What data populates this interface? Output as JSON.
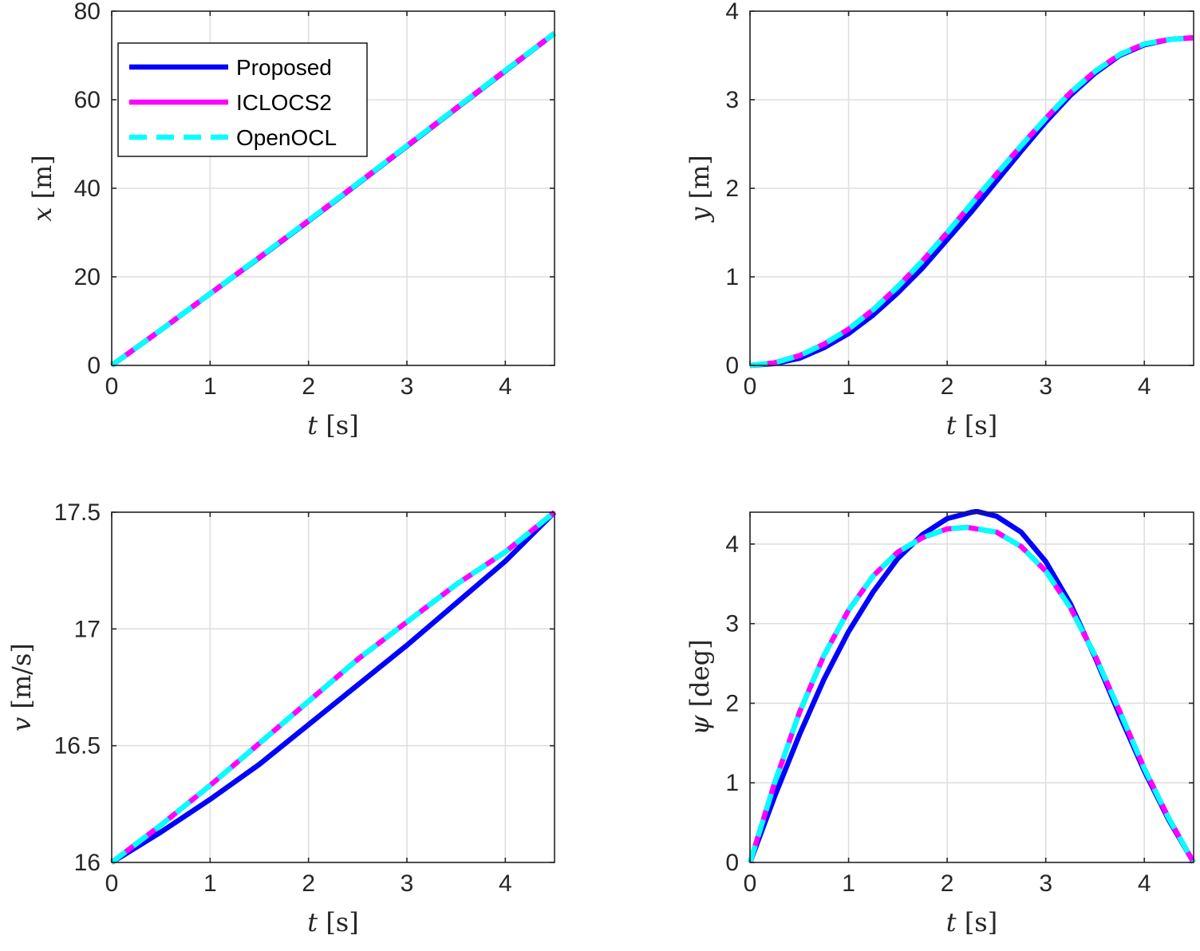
{
  "chart_data": [
    {
      "type": "line",
      "xlabel": "t [s]",
      "xlabel_var": "t",
      "xlabel_unit": "[s]",
      "ylabel": "x [m]",
      "ylabel_var": "x",
      "ylabel_unit": "[m]",
      "xlim": [
        0,
        4.5
      ],
      "ylim": [
        0,
        80
      ],
      "xticks": [
        "0",
        "1",
        "2",
        "3",
        "4"
      ],
      "xtick_values": [
        0,
        1,
        2,
        3,
        4
      ],
      "yticks": [
        "0",
        "20",
        "40",
        "60",
        "80"
      ],
      "ytick_values": [
        0,
        20,
        40,
        60,
        80
      ],
      "grid": true,
      "legend": "top-left",
      "series": [
        {
          "name": "Proposed",
          "color": "#0000ff",
          "style": "solid",
          "x": [
            0,
            0.5,
            1,
            1.5,
            2,
            2.5,
            3,
            3.5,
            4,
            4.5
          ],
          "y": [
            0,
            8.0,
            16.2,
            24.3,
            32.6,
            41.0,
            49.5,
            58.0,
            66.5,
            75.0
          ]
        },
        {
          "name": "ICLOCS2",
          "color": "#ff00ff",
          "style": "solid",
          "x": [
            0,
            0.5,
            1,
            1.5,
            2,
            2.5,
            3,
            3.5,
            4,
            4.5
          ],
          "y": [
            0,
            8.0,
            16.2,
            24.4,
            32.7,
            41.1,
            49.6,
            58.1,
            66.6,
            75.0
          ]
        },
        {
          "name": "OpenOCL",
          "color": "#00ffff",
          "style": "dashed",
          "x": [
            0,
            0.5,
            1,
            1.5,
            2,
            2.5,
            3,
            3.5,
            4,
            4.5
          ],
          "y": [
            0,
            8.0,
            16.2,
            24.4,
            32.7,
            41.1,
            49.6,
            58.1,
            66.6,
            75.0
          ]
        }
      ]
    },
    {
      "type": "line",
      "xlabel": "t [s]",
      "xlabel_var": "t",
      "xlabel_unit": "[s]",
      "ylabel": "y [m]",
      "ylabel_var": "y",
      "ylabel_unit": "[m]",
      "xlim": [
        0,
        4.5
      ],
      "ylim": [
        0,
        4
      ],
      "xticks": [
        "0",
        "1",
        "2",
        "3",
        "4"
      ],
      "xtick_values": [
        0,
        1,
        2,
        3,
        4
      ],
      "yticks": [
        "0",
        "1",
        "2",
        "3",
        "4"
      ],
      "ytick_values": [
        0,
        1,
        2,
        3,
        4
      ],
      "grid": true,
      "series": [
        {
          "name": "Proposed",
          "color": "#0000ff",
          "style": "solid",
          "x": [
            0,
            0.25,
            0.5,
            0.75,
            1,
            1.25,
            1.5,
            1.75,
            2,
            2.25,
            2.5,
            2.75,
            3,
            3.25,
            3.5,
            3.75,
            4,
            4.25,
            4.5
          ],
          "y": [
            0,
            0.02,
            0.08,
            0.2,
            0.36,
            0.57,
            0.82,
            1.1,
            1.42,
            1.74,
            2.08,
            2.42,
            2.75,
            3.05,
            3.3,
            3.5,
            3.62,
            3.68,
            3.7
          ]
        },
        {
          "name": "ICLOCS2",
          "color": "#ff00ff",
          "style": "solid",
          "x": [
            0,
            0.25,
            0.5,
            0.75,
            1,
            1.25,
            1.5,
            1.75,
            2,
            2.25,
            2.5,
            2.75,
            3,
            3.25,
            3.5,
            3.75,
            4,
            4.25,
            4.5
          ],
          "y": [
            0,
            0.03,
            0.11,
            0.24,
            0.41,
            0.63,
            0.89,
            1.18,
            1.5,
            1.83,
            2.16,
            2.48,
            2.79,
            3.08,
            3.32,
            3.51,
            3.63,
            3.68,
            3.7
          ]
        },
        {
          "name": "OpenOCL",
          "color": "#00ffff",
          "style": "dashed",
          "x": [
            0,
            0.25,
            0.5,
            0.75,
            1,
            1.25,
            1.5,
            1.75,
            2,
            2.25,
            2.5,
            2.75,
            3,
            3.25,
            3.5,
            3.75,
            4,
            4.25,
            4.5
          ],
          "y": [
            0,
            0.03,
            0.11,
            0.24,
            0.41,
            0.63,
            0.89,
            1.18,
            1.5,
            1.83,
            2.16,
            2.48,
            2.79,
            3.08,
            3.32,
            3.51,
            3.63,
            3.68,
            3.7
          ]
        }
      ]
    },
    {
      "type": "line",
      "xlabel": "t [s]",
      "xlabel_var": "t",
      "xlabel_unit": "[s]",
      "ylabel": "v [m/s]",
      "ylabel_var": "v",
      "ylabel_unit": "[m/s]",
      "xlim": [
        0,
        4.5
      ],
      "ylim": [
        16,
        17.5
      ],
      "xticks": [
        "0",
        "1",
        "2",
        "3",
        "4"
      ],
      "xtick_values": [
        0,
        1,
        2,
        3,
        4
      ],
      "yticks": [
        "16",
        "16.5",
        "17",
        "17.5"
      ],
      "ytick_values": [
        16,
        16.5,
        17,
        17.5
      ],
      "grid": true,
      "series": [
        {
          "name": "Proposed",
          "color": "#0000ff",
          "style": "solid",
          "x": [
            0,
            0.5,
            1,
            1.5,
            2,
            2.5,
            3,
            3.5,
            4,
            4.5
          ],
          "y": [
            16.0,
            16.13,
            16.27,
            16.42,
            16.59,
            16.76,
            16.93,
            17.11,
            17.29,
            17.5
          ]
        },
        {
          "name": "ICLOCS2",
          "color": "#ff00ff",
          "style": "solid",
          "x": [
            0,
            0.5,
            1,
            1.5,
            2,
            2.5,
            3,
            3.5,
            4,
            4.5
          ],
          "y": [
            16.0,
            16.16,
            16.33,
            16.51,
            16.69,
            16.87,
            17.03,
            17.19,
            17.33,
            17.5
          ]
        },
        {
          "name": "OpenOCL",
          "color": "#00ffff",
          "style": "dashed",
          "x": [
            0,
            0.5,
            1,
            1.5,
            2,
            2.5,
            3,
            3.5,
            4,
            4.5
          ],
          "y": [
            16.0,
            16.16,
            16.33,
            16.51,
            16.69,
            16.87,
            17.03,
            17.19,
            17.33,
            17.5
          ]
        }
      ]
    },
    {
      "type": "line",
      "xlabel": "t [s]",
      "xlabel_var": "t",
      "xlabel_unit": "[s]",
      "ylabel": "ψ [deg]",
      "ylabel_var": "ψ",
      "ylabel_unit": "[deg]",
      "xlim": [
        0,
        4.5
      ],
      "ylim": [
        0,
        4.4
      ],
      "xticks": [
        "0",
        "1",
        "2",
        "3",
        "4"
      ],
      "xtick_values": [
        0,
        1,
        2,
        3,
        4
      ],
      "yticks": [
        "0",
        "1",
        "2",
        "3",
        "4"
      ],
      "ytick_values": [
        0,
        1,
        2,
        3,
        4
      ],
      "grid": true,
      "series": [
        {
          "name": "Proposed",
          "color": "#0000ff",
          "style": "solid",
          "x": [
            0,
            0.25,
            0.5,
            0.75,
            1,
            1.25,
            1.5,
            1.75,
            2,
            2.25,
            2.3,
            2.5,
            2.75,
            3,
            3.25,
            3.5,
            3.75,
            4,
            4.25,
            4.5
          ],
          "y": [
            0,
            0.83,
            1.6,
            2.3,
            2.9,
            3.4,
            3.82,
            4.12,
            4.32,
            4.4,
            4.41,
            4.35,
            4.15,
            3.78,
            3.25,
            2.58,
            1.85,
            1.15,
            0.53,
            0
          ]
        },
        {
          "name": "ICLOCS2",
          "color": "#ff00ff",
          "style": "solid",
          "x": [
            0,
            0.25,
            0.5,
            0.75,
            1,
            1.25,
            1.5,
            1.75,
            2,
            2.2,
            2.5,
            2.75,
            3,
            3.25,
            3.5,
            3.75,
            4,
            4.25,
            4.5
          ],
          "y": [
            0,
            1.0,
            1.88,
            2.6,
            3.17,
            3.6,
            3.9,
            4.08,
            4.19,
            4.21,
            4.15,
            3.97,
            3.66,
            3.2,
            2.6,
            1.9,
            1.18,
            0.55,
            0
          ]
        },
        {
          "name": "OpenOCL",
          "color": "#00ffff",
          "style": "dashed",
          "x": [
            0,
            0.25,
            0.5,
            0.75,
            1,
            1.25,
            1.5,
            1.75,
            2,
            2.2,
            2.5,
            2.75,
            3,
            3.25,
            3.5,
            3.75,
            4,
            4.25,
            4.5
          ],
          "y": [
            0,
            1.0,
            1.88,
            2.6,
            3.17,
            3.6,
            3.9,
            4.08,
            4.19,
            4.21,
            4.15,
            3.97,
            3.66,
            3.2,
            2.6,
            1.9,
            1.18,
            0.55,
            0
          ]
        }
      ]
    }
  ]
}
